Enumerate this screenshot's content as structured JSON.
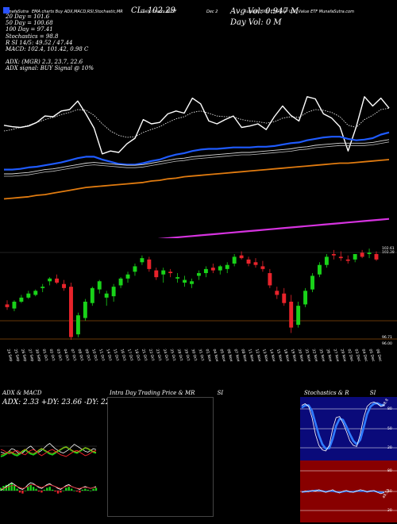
{
  "header": {
    "strip": [
      "MunafaSutra",
      "EMA charts Buy ADX,MACD,RSI,Stochastic,MR",
      "Daily Charts RUSF",
      "Dec 2",
      "Russell 1000 ESG S&P U.S. Value ETF MunafaSutra.com"
    ],
    "close_label": "CL: 102.29",
    "avg_vol_label": "Avg Vol: 0.947 M",
    "day_vol_label": "Day Vol: 0   M",
    "lines": [
      "20  Day = 101.6",
      "50  Day = 100.68",
      "100  Day = 97.41",
      "Stochastics = 98.8",
      "R          SI 14/5: 49.52 / 47.44",
      "MACD: 102.4, 101.42, 0.98  C",
      "",
      "ADX:                               (MGR) 2.3, 23.7, 22.6",
      "ADX  signal:                               BUY Signal @ 10%"
    ]
  },
  "chart_data": [
    {
      "type": "line",
      "title": "Price and moving averages",
      "x": [
        0,
        1,
        2,
        3,
        4,
        5,
        6,
        7,
        8,
        9,
        10,
        11,
        12,
        13,
        14,
        15,
        16,
        17,
        18,
        19,
        20,
        21,
        22,
        23,
        24,
        25,
        26,
        27,
        28,
        29,
        30,
        31,
        32,
        33,
        34,
        35,
        36,
        37,
        38,
        39,
        40,
        41,
        42,
        43,
        44,
        45,
        46,
        47
      ],
      "series": [
        {
          "name": "Price",
          "values": [
            58,
            56,
            55,
            57,
            62,
            71,
            70,
            78,
            80,
            92,
            74,
            54,
            18,
            22,
            20,
            32,
            40,
            66,
            60,
            62,
            74,
            78,
            75,
            96,
            88,
            64,
            60,
            66,
            71,
            55,
            57,
            60,
            52,
            70,
            85,
            72,
            64,
            98,
            95,
            74,
            68,
            56,
            22,
            56,
            98,
            85,
            96,
            82
          ]
        },
        {
          "name": "EMA fast",
          "values": [
            50,
            52,
            55,
            58,
            62,
            66,
            69,
            73,
            76,
            80,
            79,
            72,
            60,
            50,
            44,
            41,
            42,
            48,
            52,
            56,
            62,
            67,
            70,
            76,
            78,
            75,
            71,
            70,
            70,
            66,
            64,
            63,
            61,
            63,
            68,
            70,
            69,
            76,
            80,
            79,
            76,
            70,
            58,
            55,
            66,
            72,
            80,
            82
          ]
        },
        {
          "name": "EMA 20",
          "values": [
            -4,
            -4,
            -3,
            -1,
            0,
            2,
            4,
            6,
            9,
            12,
            14,
            14,
            10,
            7,
            4,
            3,
            3,
            5,
            8,
            10,
            14,
            17,
            19,
            22,
            24,
            25,
            25,
            26,
            27,
            27,
            27,
            28,
            28,
            29,
            31,
            33,
            34,
            37,
            39,
            41,
            42,
            42,
            39,
            37,
            38,
            40,
            45,
            48
          ]
        },
        {
          "name": "EMA 50",
          "values": [
            -10,
            -10,
            -9,
            -8,
            -6,
            -4,
            -3,
            -1,
            1,
            3,
            5,
            6,
            5,
            4,
            3,
            2,
            2,
            3,
            5,
            7,
            9,
            11,
            12,
            14,
            15,
            16,
            17,
            18,
            19,
            20,
            20,
            21,
            22,
            23,
            24,
            25,
            27,
            28,
            30,
            31,
            32,
            33,
            33,
            33,
            33,
            34,
            36,
            38
          ]
        },
        {
          "name": "EMA 100",
          "values": [
            -45,
            -44,
            -43,
            -42,
            -40,
            -39,
            -37,
            -35,
            -33,
            -31,
            -29,
            -28,
            -27,
            -26,
            -25,
            -24,
            -23,
            -22,
            -20,
            -19,
            -17,
            -16,
            -14,
            -13,
            -12,
            -11,
            -10,
            -9,
            -8,
            -7,
            -6,
            -5,
            -4,
            -3,
            -2,
            -1,
            0,
            1,
            2,
            3,
            4,
            5,
            5,
            6,
            7,
            8,
            9,
            10
          ]
        },
        {
          "name": "EMA 200",
          "values": [
            -120,
            -119,
            -118,
            -117,
            -116,
            -115,
            -114,
            -113,
            -112,
            -111,
            -110,
            -109,
            -108,
            -107,
            -106,
            -105,
            -104,
            -103,
            -102,
            -101,
            -100,
            -99,
            -98,
            -97,
            -96,
            -95,
            -94,
            -93,
            -92,
            -91,
            -90,
            -89,
            -88,
            -87,
            -86,
            -85,
            -84,
            -83,
            -82,
            -81,
            -80,
            -79,
            -78,
            -77,
            -76,
            -75,
            -74,
            -73
          ]
        }
      ]
    },
    {
      "type": "candlestick",
      "title": "Daily candles",
      "ylim": [
        96.0,
        102.65
      ],
      "tick_labels": [
        "102.61",
        "102.38",
        "96.71",
        "96.00"
      ],
      "categories": [
        "24 Sep",
        "25 Sep",
        "26 Sep",
        "27 Sep",
        "30 Sep",
        "01 Oct",
        "02 Oct",
        "03 Oct",
        "04 Oct",
        "07 Oct",
        "08 Oct",
        "09 Oct",
        "10 Oct",
        "11 Oct",
        "14 Oct",
        "15 Oct",
        "16 Oct",
        "17 Oct",
        "18 Oct",
        "21 Oct",
        "22 Oct",
        "23 Oct",
        "24 Oct",
        "25 Oct",
        "28 Oct",
        "29 Oct",
        "30 Oct",
        "31 Oct",
        "01 Nov",
        "04 Nov",
        "05 Nov",
        "06 Nov",
        "07 Nov",
        "08 Nov",
        "11 Nov",
        "12 Nov",
        "13 Nov",
        "14 Nov",
        "15 Nov",
        "18 Nov",
        "19 Nov",
        "20 Nov",
        "21 Nov",
        "22 Nov",
        "25 Nov",
        "26 Nov",
        "27 Nov",
        "29 Nov",
        "02 Dec",
        "03 Dec",
        "04 Dec",
        "05 Dec",
        "06 Dec"
      ],
      "candles": [
        {
          "o": 98.6,
          "h": 98.9,
          "l": 98.2,
          "c": 98.4
        },
        {
          "o": 98.3,
          "h": 98.9,
          "l": 98.1,
          "c": 98.8
        },
        {
          "o": 98.8,
          "h": 99.3,
          "l": 98.7,
          "c": 99.1
        },
        {
          "o": 99.1,
          "h": 99.6,
          "l": 99.0,
          "c": 99.4
        },
        {
          "o": 99.3,
          "h": 99.7,
          "l": 99.2,
          "c": 99.6
        },
        {
          "o": 99.8,
          "h": 100.1,
          "l": 99.5,
          "c": 99.9
        },
        {
          "o": 100.3,
          "h": 100.6,
          "l": 100.0,
          "c": 100.5
        },
        {
          "o": 100.5,
          "h": 100.8,
          "l": 100.1,
          "c": 100.2
        },
        {
          "o": 100.1,
          "h": 100.4,
          "l": 99.6,
          "c": 99.8
        },
        {
          "o": 99.9,
          "h": 100.2,
          "l": 96.0,
          "c": 96.2
        },
        {
          "o": 96.4,
          "h": 98.0,
          "l": 96.2,
          "c": 97.8
        },
        {
          "o": 97.6,
          "h": 99.0,
          "l": 97.4,
          "c": 98.8
        },
        {
          "o": 98.7,
          "h": 99.9,
          "l": 98.5,
          "c": 99.8
        },
        {
          "o": 99.7,
          "h": 100.4,
          "l": 99.4,
          "c": 100.3
        },
        {
          "o": 99.1,
          "h": 99.6,
          "l": 98.5,
          "c": 99.4
        },
        {
          "o": 99.2,
          "h": 100.1,
          "l": 98.8,
          "c": 99.9
        },
        {
          "o": 100.0,
          "h": 100.6,
          "l": 99.8,
          "c": 100.5
        },
        {
          "o": 100.5,
          "h": 101.0,
          "l": 100.2,
          "c": 100.8
        },
        {
          "o": 101.0,
          "h": 101.6,
          "l": 100.7,
          "c": 101.4
        },
        {
          "o": 101.7,
          "h": 102.2,
          "l": 101.5,
          "c": 102.0
        },
        {
          "o": 101.9,
          "h": 102.1,
          "l": 101.0,
          "c": 101.2
        },
        {
          "o": 101.1,
          "h": 101.3,
          "l": 100.4,
          "c": 100.6
        },
        {
          "o": 100.8,
          "h": 101.3,
          "l": 100.2,
          "c": 101.1
        },
        {
          "o": 101.0,
          "h": 101.2,
          "l": 100.6,
          "c": 100.9
        },
        {
          "o": 100.5,
          "h": 100.9,
          "l": 100.2,
          "c": 100.6
        },
        {
          "o": 100.2,
          "h": 100.7,
          "l": 99.9,
          "c": 100.4
        },
        {
          "o": 100.1,
          "h": 100.5,
          "l": 99.8,
          "c": 100.3
        },
        {
          "o": 100.7,
          "h": 101.1,
          "l": 100.4,
          "c": 100.9
        },
        {
          "o": 100.9,
          "h": 101.4,
          "l": 100.6,
          "c": 101.2
        },
        {
          "o": 101.3,
          "h": 101.6,
          "l": 100.9,
          "c": 101.1
        },
        {
          "o": 101.1,
          "h": 101.5,
          "l": 100.8,
          "c": 101.4
        },
        {
          "o": 101.2,
          "h": 101.7,
          "l": 100.9,
          "c": 101.5
        },
        {
          "o": 101.6,
          "h": 102.3,
          "l": 101.4,
          "c": 102.1
        },
        {
          "o": 102.2,
          "h": 102.5,
          "l": 101.9,
          "c": 102.0
        },
        {
          "o": 101.9,
          "h": 102.1,
          "l": 101.4,
          "c": 101.6
        },
        {
          "o": 101.7,
          "h": 102.0,
          "l": 101.3,
          "c": 101.5
        },
        {
          "o": 101.4,
          "h": 101.8,
          "l": 101.0,
          "c": 101.2
        },
        {
          "o": 100.9,
          "h": 101.2,
          "l": 99.8,
          "c": 100.0
        },
        {
          "o": 99.6,
          "h": 99.9,
          "l": 99.0,
          "c": 99.3
        },
        {
          "o": 99.4,
          "h": 99.8,
          "l": 98.5,
          "c": 98.7
        },
        {
          "o": 98.8,
          "h": 99.3,
          "l": 96.5,
          "c": 96.9
        },
        {
          "o": 97.1,
          "h": 98.8,
          "l": 96.9,
          "c": 98.5
        },
        {
          "o": 98.6,
          "h": 99.8,
          "l": 98.4,
          "c": 99.6
        },
        {
          "o": 99.7,
          "h": 100.9,
          "l": 99.5,
          "c": 100.7
        },
        {
          "o": 100.8,
          "h": 101.7,
          "l": 100.6,
          "c": 101.5
        },
        {
          "o": 101.5,
          "h": 102.3,
          "l": 101.3,
          "c": 102.1
        },
        {
          "o": 102.3,
          "h": 102.6,
          "l": 101.9,
          "c": 102.2
        },
        {
          "o": 102.1,
          "h": 102.5,
          "l": 101.8,
          "c": 102.0
        },
        {
          "o": 101.9,
          "h": 102.2,
          "l": 101.6,
          "c": 101.8
        },
        {
          "o": 101.9,
          "h": 102.3,
          "l": 101.7,
          "c": 102.3
        },
        {
          "o": 102.4,
          "h": 102.6,
          "l": 102.0,
          "c": 102.1
        },
        {
          "o": 102.3,
          "h": 102.7,
          "l": 102.0,
          "c": 102.4
        },
        {
          "o": 102.3,
          "h": 102.5,
          "l": 101.8,
          "c": 101.9
        }
      ]
    }
  ],
  "panels": {
    "adx": {
      "title": "ADX  & MACD",
      "values_label": "ADX: 2.33  +DY: 23.66  -DY: 22.58",
      "adx_series": [
        30,
        28,
        26,
        32,
        38,
        36,
        30,
        26,
        28,
        34,
        40,
        44,
        38,
        32,
        30,
        34,
        40,
        46,
        50,
        44,
        38,
        34,
        30,
        28,
        32,
        36,
        42,
        48,
        44,
        40,
        36,
        32,
        30,
        34,
        38,
        36
      ],
      "pdi_series": [
        20,
        22,
        26,
        30,
        28,
        24,
        22,
        26,
        32,
        36,
        30,
        26,
        24,
        28,
        34,
        38,
        34,
        30,
        26,
        24,
        28,
        32,
        36,
        40,
        42,
        38,
        34,
        30,
        28,
        32,
        36,
        40,
        38,
        34,
        30,
        28
      ],
      "ndi_series": [
        36,
        34,
        30,
        26,
        28,
        32,
        34,
        30,
        26,
        24,
        30,
        34,
        36,
        32,
        26,
        22,
        26,
        30,
        34,
        36,
        32,
        28,
        24,
        22,
        20,
        24,
        28,
        32,
        34,
        30,
        26,
        22,
        24,
        28,
        32,
        34
      ],
      "macd_line": [
        2,
        4,
        6,
        8,
        10,
        8,
        6,
        4,
        3,
        5,
        8,
        10,
        9,
        7,
        5,
        4,
        6,
        8,
        9,
        7,
        6,
        4,
        3,
        5,
        7,
        8,
        6,
        5,
        4,
        3,
        5,
        6,
        5,
        4,
        5,
        6
      ],
      "macd_signal": [
        3,
        4,
        5,
        6,
        7,
        7,
        6,
        5,
        4,
        5,
        6,
        8,
        8,
        7,
        6,
        5,
        6,
        7,
        8,
        7,
        6,
        5,
        4,
        5,
        6,
        7,
        6,
        5,
        4,
        4,
        5,
        5,
        5,
        4,
        5,
        5
      ],
      "macd_hist": [
        3,
        5,
        6,
        7,
        8,
        5,
        2,
        -2,
        -3,
        0,
        4,
        6,
        4,
        2,
        -1,
        -2,
        1,
        3,
        4,
        1,
        -1,
        -3,
        -2,
        0,
        3,
        4,
        2,
        0,
        -1,
        -2,
        1,
        2,
        1,
        0,
        2,
        3
      ]
    },
    "mr": {
      "title": "Intra  Day Trading Price  & MR",
      "title_suffix": "SI"
    },
    "stoch": {
      "title": "Stochastics & R",
      "title_suffix": "SI",
      "ticks": [
        "80",
        "50",
        "20"
      ],
      "value_label": "98.8",
      "fast": [
        92,
        95,
        90,
        70,
        40,
        20,
        12,
        10,
        20,
        50,
        70,
        72,
        60,
        45,
        28,
        20,
        18,
        40,
        70,
        90,
        96,
        98,
        95,
        90,
        92
      ],
      "slow": [
        88,
        92,
        92,
        82,
        60,
        38,
        22,
        14,
        15,
        32,
        55,
        68,
        66,
        54,
        40,
        28,
        22,
        30,
        52,
        76,
        90,
        95,
        96,
        93,
        92
      ]
    },
    "rsi": {
      "ticks": [
        "80",
        "50",
        "20"
      ],
      "value_label": "49.52",
      "fast": [
        48,
        50,
        49,
        51,
        50,
        52,
        50,
        48,
        50,
        52,
        49,
        47,
        50,
        51,
        49,
        48,
        50,
        52,
        51,
        49,
        50,
        51,
        48,
        46,
        48
      ],
      "slow": [
        49,
        49,
        50,
        50,
        51,
        51,
        50,
        49,
        50,
        50,
        49,
        48,
        49,
        50,
        49,
        49,
        50,
        50,
        50,
        49,
        50,
        50,
        49,
        48,
        48
      ]
    }
  }
}
